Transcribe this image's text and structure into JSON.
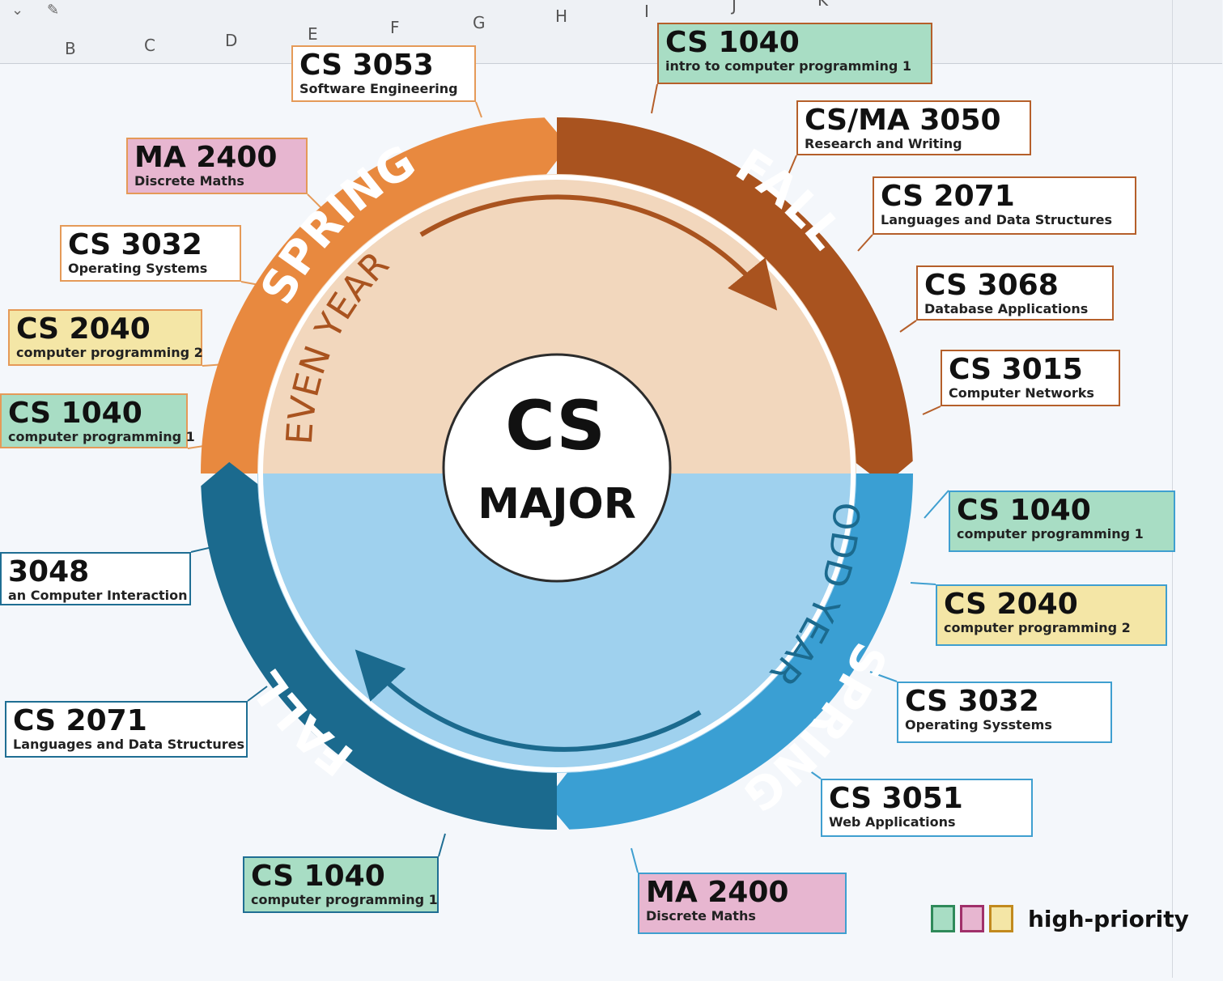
{
  "sheet": {
    "columns": [
      "B",
      "C",
      "D",
      "E",
      "F",
      "G",
      "H",
      "I",
      "J",
      "K"
    ],
    "toolbar_glyphs": [
      "⌄",
      "✎"
    ]
  },
  "center": {
    "line1": "CS",
    "line2": "MAJOR"
  },
  "ring": {
    "spring_top": "SPRING",
    "fall_top": "FALL",
    "spring_bottom": "SPRING",
    "fall_bottom": "FALL",
    "even_year": "EVEN YEAR",
    "odd_year": "ODD YEAR"
  },
  "colors": {
    "spring_top": "#e8893f",
    "fall_top": "#a9531f",
    "spring_bottom": "#3a9fd3",
    "fall_bottom": "#1b6a8e",
    "even_fill": "#f2d7bd",
    "odd_fill": "#9fd1ee",
    "priority_green": "#a8ddc4",
    "priority_pink": "#e7b6d0",
    "priority_yellow": "#f4e6a6"
  },
  "courses": [
    {
      "code": "CS 3053",
      "name": "Software Engineering",
      "priority": "none",
      "group": "spring-top"
    },
    {
      "code": "CS 1040",
      "name": "intro to computer programming 1",
      "priority": "green",
      "group": "fall-top"
    },
    {
      "code": "CS/MA 3050",
      "name": "Research and Writing",
      "priority": "none",
      "group": "fall-top"
    },
    {
      "code": "CS 2071",
      "name": "Languages and Data Structures",
      "priority": "none",
      "group": "fall-top"
    },
    {
      "code": "CS 3068",
      "name": "Database Applications",
      "priority": "none",
      "group": "fall-top"
    },
    {
      "code": "CS 3015",
      "name": "Computer Networks",
      "priority": "none",
      "group": "fall-top"
    },
    {
      "code": "MA 2400",
      "name": "Discrete Maths",
      "priority": "pink",
      "group": "spring-top"
    },
    {
      "code": "CS 3032",
      "name": "Operating Systems",
      "priority": "none",
      "group": "spring-top"
    },
    {
      "code": "CS 2040",
      "name": "computer programming 2",
      "priority": "yellow",
      "group": "spring-top"
    },
    {
      "code": "CS 1040",
      "name": "computer programming 1",
      "priority": "green",
      "group": "spring-top"
    },
    {
      "code": "3048",
      "name": "an Computer Interaction",
      "priority": "none",
      "group": "fall-bot"
    },
    {
      "code": "CS 2071",
      "name": "Languages and Data Structures",
      "priority": "none",
      "group": "fall-bot"
    },
    {
      "code": "CS 1040",
      "name": "computer programming 1",
      "priority": "green",
      "group": "fall-bot"
    },
    {
      "code": "MA 2400",
      "name": "Discrete Maths",
      "priority": "pink",
      "group": "spring-bot"
    },
    {
      "code": "CS 3051",
      "name": "Web Applications",
      "priority": "none",
      "group": "spring-bot"
    },
    {
      "code": "CS 3032",
      "name": "Operating Sysstems",
      "priority": "none",
      "group": "spring-bot"
    },
    {
      "code": "CS 2040",
      "name": "computer programming 2",
      "priority": "yellow",
      "group": "spring-bot"
    },
    {
      "code": "CS 1040",
      "name": "computer programming 1",
      "priority": "green",
      "group": "spring-bot"
    }
  ],
  "legend": {
    "label": "high-priority"
  }
}
